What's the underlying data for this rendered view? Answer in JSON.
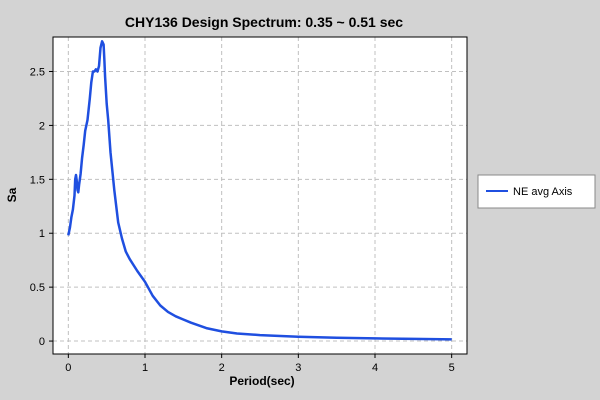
{
  "chart_data": {
    "type": "line",
    "title": "CHY136 Design Spectrum: 0.35 ~ 0.51 sec",
    "xlabel": "Period(sec)",
    "ylabel": "Sa",
    "xlim": [
      -0.2,
      5.2
    ],
    "ylim": [
      -0.12,
      2.82
    ],
    "xticks": [
      0,
      1,
      2,
      3,
      4,
      5
    ],
    "xtick_labels": [
      "0",
      "1",
      "2",
      "3",
      "4",
      "5"
    ],
    "yticks": [
      0,
      0.5,
      1,
      1.5,
      2,
      2.5
    ],
    "ytick_labels": [
      "0",
      "0.5",
      "1",
      "1.5",
      "2",
      "2.5"
    ],
    "grid": true,
    "legend_position": "right",
    "colors": {
      "background": "#d3d3d3",
      "plot_background": "#ffffff",
      "grid": "#c0c0c0",
      "series": "#1f4fe0"
    },
    "series": [
      {
        "name": "NE avg Axis",
        "x": [
          0,
          0.02,
          0.04,
          0.06,
          0.08,
          0.09,
          0.1,
          0.11,
          0.12,
          0.13,
          0.14,
          0.16,
          0.18,
          0.2,
          0.22,
          0.25,
          0.28,
          0.3,
          0.32,
          0.34,
          0.36,
          0.38,
          0.4,
          0.42,
          0.44,
          0.46,
          0.47,
          0.48,
          0.5,
          0.52,
          0.55,
          0.6,
          0.65,
          0.7,
          0.75,
          0.8,
          0.9,
          1.0,
          1.1,
          1.2,
          1.3,
          1.4,
          1.5,
          1.6,
          1.8,
          2.0,
          2.2,
          2.5,
          3.0,
          3.5,
          4.0,
          4.5,
          5.0
        ],
        "y": [
          0.98,
          1.05,
          1.15,
          1.22,
          1.35,
          1.5,
          1.54,
          1.48,
          1.4,
          1.38,
          1.45,
          1.55,
          1.7,
          1.82,
          1.95,
          2.05,
          2.25,
          2.4,
          2.5,
          2.5,
          2.52,
          2.5,
          2.55,
          2.72,
          2.78,
          2.75,
          2.6,
          2.45,
          2.2,
          2.05,
          1.75,
          1.4,
          1.1,
          0.95,
          0.83,
          0.76,
          0.65,
          0.55,
          0.42,
          0.33,
          0.27,
          0.23,
          0.2,
          0.17,
          0.12,
          0.09,
          0.07,
          0.055,
          0.04,
          0.03,
          0.025,
          0.02,
          0.015
        ]
      }
    ]
  }
}
